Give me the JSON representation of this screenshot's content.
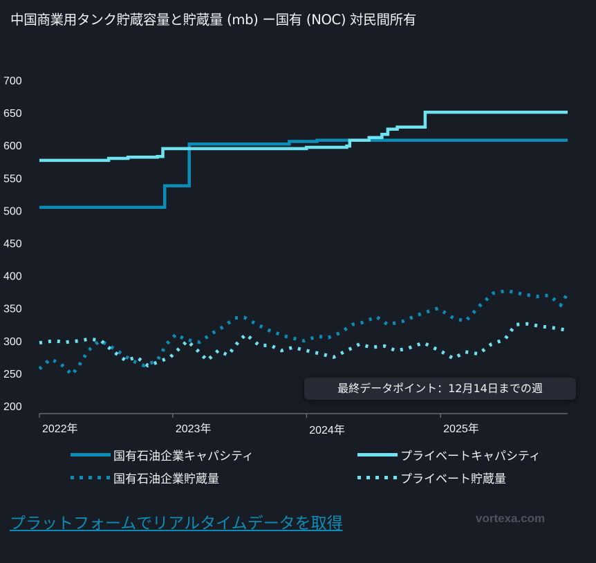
{
  "title": "中国商業用タンク貯蔵容量と貯蔵量 (mb) ー国有 (NOC) 対民間所有",
  "annotation": "最終データポイント：12月14日までの週",
  "link_text": "プラットフォームでリアルタイムデータを取得",
  "logo": "vortexa.com",
  "colors": {
    "background": "#181c24",
    "noc": "#0b8db8",
    "private": "#6fe2f0"
  },
  "chart_data": {
    "type": "line",
    "title": "中国商業用タンク貯蔵容量と貯蔵量 (mb) ー国有 (NOC) 対民間所有",
    "ylim": [
      200,
      700
    ],
    "yticks": [
      "700",
      "650",
      "600",
      "550",
      "500",
      "450",
      "400",
      "350",
      "300",
      "250",
      "200"
    ],
    "xlim": [
      "2022-01-02",
      "2025-12-14"
    ],
    "xticks": [
      {
        "date": "2022-01-01",
        "label": "2022年"
      },
      {
        "date": "2023-01-01",
        "label": "2023年"
      },
      {
        "date": "2024-01-01",
        "label": "2024年"
      },
      {
        "date": "2025-01-01",
        "label": "2025年"
      }
    ],
    "grid": false,
    "legend_position": "bottom",
    "series": [
      {
        "name": "国有石油企業キャパシティ",
        "style": "solid-step",
        "color": "#0b8db8",
        "points": [
          [
            "2022-01-02",
            505
          ],
          [
            "2022-12-10",
            538
          ],
          [
            "2023-02-15",
            602
          ],
          [
            "2023-11-15",
            606
          ],
          [
            "2024-01-30",
            608
          ],
          [
            "2025-12-14",
            608
          ]
        ]
      },
      {
        "name": "プライベートキャパシティ",
        "style": "solid-step",
        "color": "#6fe2f0",
        "points": [
          [
            "2022-01-02",
            577
          ],
          [
            "2022-07-10",
            580
          ],
          [
            "2022-09-01",
            582
          ],
          [
            "2022-11-20",
            583
          ],
          [
            "2022-12-05",
            595
          ],
          [
            "2024-01-01",
            597
          ],
          [
            "2024-04-20",
            599
          ],
          [
            "2024-04-28",
            608
          ],
          [
            "2024-06-20",
            612
          ],
          [
            "2024-07-25",
            617
          ],
          [
            "2024-08-10",
            625
          ],
          [
            "2024-09-05",
            628
          ],
          [
            "2024-11-20",
            651
          ],
          [
            "2025-12-14",
            651
          ]
        ]
      },
      {
        "name": "国有石油企業貯蔵量",
        "style": "dotted",
        "color": "#0b8db8",
        "points": [
          [
            "2022-01-02",
            257
          ],
          [
            "2022-02-01",
            272
          ],
          [
            "2022-03-01",
            265
          ],
          [
            "2022-04-01",
            248
          ],
          [
            "2022-04-20",
            262
          ],
          [
            "2022-05-15",
            285
          ],
          [
            "2022-06-15",
            300
          ],
          [
            "2022-07-05",
            295
          ],
          [
            "2022-08-10",
            282
          ],
          [
            "2022-09-10",
            270
          ],
          [
            "2022-10-15",
            262
          ],
          [
            "2022-11-20",
            270
          ],
          [
            "2022-12-15",
            295
          ],
          [
            "2023-01-10",
            310
          ],
          [
            "2023-02-05",
            302
          ],
          [
            "2023-03-15",
            298
          ],
          [
            "2023-04-20",
            312
          ],
          [
            "2023-05-20",
            322
          ],
          [
            "2023-06-20",
            335
          ],
          [
            "2023-07-15",
            336
          ],
          [
            "2023-08-20",
            325
          ],
          [
            "2023-09-25",
            315
          ],
          [
            "2023-11-10",
            306
          ],
          [
            "2023-12-25",
            300
          ],
          [
            "2024-02-01",
            307
          ],
          [
            "2024-03-01",
            305
          ],
          [
            "2024-04-01",
            312
          ],
          [
            "2024-05-05",
            325
          ],
          [
            "2024-06-01",
            328
          ],
          [
            "2024-07-10",
            337
          ],
          [
            "2024-08-10",
            325
          ],
          [
            "2024-09-20",
            330
          ],
          [
            "2024-11-01",
            340
          ],
          [
            "2024-12-25",
            350
          ],
          [
            "2025-02-05",
            335
          ],
          [
            "2025-03-10",
            330
          ],
          [
            "2025-04-20",
            355
          ],
          [
            "2025-05-25",
            373
          ],
          [
            "2025-07-01",
            377
          ],
          [
            "2025-08-10",
            372
          ],
          [
            "2025-09-20",
            368
          ],
          [
            "2025-10-25",
            370
          ],
          [
            "2025-11-25",
            355
          ],
          [
            "2025-12-14",
            373
          ]
        ]
      },
      {
        "name": "プライベート貯蔵量",
        "style": "dotted",
        "color": "#6fe2f0",
        "points": [
          [
            "2022-01-02",
            297
          ],
          [
            "2022-02-10",
            300
          ],
          [
            "2022-03-15",
            298
          ],
          [
            "2022-04-20",
            300
          ],
          [
            "2022-05-20",
            303
          ],
          [
            "2022-06-20",
            300
          ],
          [
            "2022-07-20",
            285
          ],
          [
            "2022-08-25",
            270
          ],
          [
            "2022-09-25",
            275
          ],
          [
            "2022-10-25",
            262
          ],
          [
            "2022-11-25",
            268
          ],
          [
            "2022-12-25",
            275
          ],
          [
            "2023-02-10",
            300
          ],
          [
            "2023-03-10",
            285
          ],
          [
            "2023-04-05",
            270
          ],
          [
            "2023-05-05",
            285
          ],
          [
            "2023-06-01",
            278
          ],
          [
            "2023-07-01",
            300
          ],
          [
            "2023-07-20",
            310
          ],
          [
            "2023-08-25",
            293
          ],
          [
            "2023-09-25",
            293
          ],
          [
            "2023-10-25",
            285
          ],
          [
            "2023-11-25",
            290
          ],
          [
            "2024-01-01",
            285
          ],
          [
            "2024-02-10",
            280
          ],
          [
            "2024-03-15",
            275
          ],
          [
            "2024-04-20",
            285
          ],
          [
            "2024-05-25",
            295
          ],
          [
            "2024-06-25",
            290
          ],
          [
            "2024-08-01",
            292
          ],
          [
            "2024-09-01",
            285
          ],
          [
            "2024-10-01",
            288
          ],
          [
            "2024-11-15",
            297
          ],
          [
            "2025-01-05",
            283
          ],
          [
            "2025-02-05",
            273
          ],
          [
            "2025-03-10",
            283
          ],
          [
            "2025-04-15",
            280
          ],
          [
            "2025-05-20",
            295
          ],
          [
            "2025-06-25",
            302
          ],
          [
            "2025-07-25",
            325
          ],
          [
            "2025-08-25",
            326
          ],
          [
            "2025-10-05",
            322
          ],
          [
            "2025-11-05",
            320
          ],
          [
            "2025-12-14",
            316
          ]
        ]
      }
    ]
  }
}
